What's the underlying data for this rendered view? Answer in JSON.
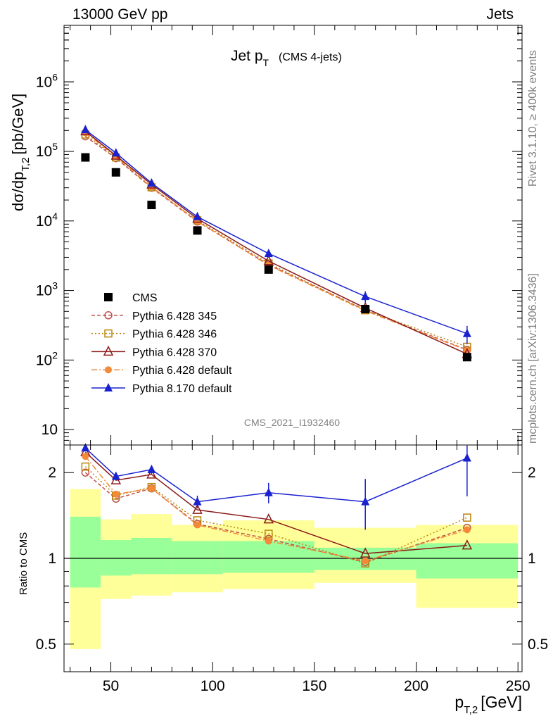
{
  "header": {
    "left": "13000 GeV pp",
    "right": "Jets",
    "plot_title_main": "Jet p",
    "plot_title_sub": "T",
    "plot_title_extra": "(CMS 4-jets)",
    "side_rivet": "Rivet 3.1.10, ≥ 400k events",
    "side_mcplots": "mcplots.cern.ch [arXiv:1306.3436]",
    "analysis_id": "CMS_2021_I1932460"
  },
  "colors": {
    "cms": "#000000",
    "p345": "#c0504d",
    "p346": "#b8860b",
    "p370": "#8b1a1a",
    "p6def": "#f28a3a",
    "p8def": "#1a22d0",
    "band_inner": "#99ff99",
    "band_outer": "#ffff99"
  },
  "chart_data": [
    {
      "type": "line",
      "yscale": "log",
      "ylabel_main": "dσ/dp",
      "ylabel_sub": "T,2",
      "ylabel_unit": "[pb/GeV]",
      "xlim": [
        27,
        252
      ],
      "ylim": [
        6,
        6500000
      ],
      "ytick_major": [
        10,
        100,
        1000,
        10000,
        100000,
        1000000
      ],
      "ytick_labels": [
        "10",
        "10^2",
        "10^3",
        "10^4",
        "10^5",
        "10^6"
      ],
      "x": [
        37.5,
        52.5,
        70,
        92.5,
        127.5,
        175,
        225
      ],
      "series": [
        {
          "name": "CMS",
          "marker": "square",
          "color": "#000000",
          "values": [
            82000,
            50000,
            17000,
            7300,
            2000,
            540,
            110
          ]
        },
        {
          "name": "Pythia 6.428 345",
          "marker": "circle-open",
          "dash": "5,3",
          "color": "#c0504d",
          "values": [
            165000,
            80000,
            30000,
            9800,
            2350,
            525,
            140
          ]
        },
        {
          "name": "Pythia 6.428 346",
          "marker": "square-open",
          "dash": "2,3",
          "color": "#b8860b",
          "values": [
            175000,
            82000,
            30500,
            10200,
            2450,
            520,
            155
          ]
        },
        {
          "name": "Pythia 6.428 370",
          "marker": "triangle-open",
          "dash": "",
          "color": "#8b1a1a",
          "values": [
            195000,
            87000,
            33500,
            10800,
            2650,
            560,
            122
          ]
        },
        {
          "name": "Pythia 6.428 default",
          "marker": "circle-filled",
          "dash": "8,3,2,3",
          "color": "#f28a3a",
          "values": [
            185000,
            85000,
            31000,
            9900,
            2300,
            510,
            138
          ]
        },
        {
          "name": "Pythia 8.170 default",
          "marker": "triangle-filled",
          "dash": "",
          "color": "#1a22d0",
          "values": [
            205000,
            95000,
            35000,
            11500,
            3400,
            820,
            240
          ],
          "err": [
            0,
            0,
            0,
            0,
            0,
            150,
            70
          ]
        }
      ],
      "legend": "bottom-left"
    },
    {
      "type": "line",
      "yscale": "log",
      "ylabel": "Ratio to CMS",
      "xlabel_main": "p",
      "xlabel_sub": "T,2",
      "xlabel_unit": "[GeV]",
      "xlim": [
        27,
        252
      ],
      "ylim": [
        0.4,
        2.5
      ],
      "ytick_labels": [
        {
          "v": 0.5,
          "t": "0.5"
        },
        {
          "v": 1,
          "t": "1"
        },
        {
          "v": 2,
          "t": "2"
        }
      ],
      "xtick_labels": [
        {
          "v": 50,
          "t": "50"
        },
        {
          "v": 100,
          "t": "100"
        },
        {
          "v": 150,
          "t": "150"
        },
        {
          "v": 200,
          "t": "200"
        },
        {
          "v": 250,
          "t": "250"
        }
      ],
      "bins": [
        [
          30,
          45
        ],
        [
          45,
          60
        ],
        [
          60,
          80
        ],
        [
          80,
          105
        ],
        [
          105,
          150
        ],
        [
          150,
          200
        ],
        [
          200,
          250
        ]
      ],
      "band_inner": [
        [
          0.79,
          1.4
        ],
        [
          0.87,
          1.16
        ],
        [
          0.88,
          1.18
        ],
        [
          0.88,
          1.15
        ],
        [
          0.89,
          1.15
        ],
        [
          0.91,
          1.09
        ],
        [
          0.85,
          1.13
        ]
      ],
      "band_outer": [
        [
          0.48,
          1.75
        ],
        [
          0.72,
          1.37
        ],
        [
          0.74,
          1.43
        ],
        [
          0.76,
          1.31
        ],
        [
          0.78,
          1.36
        ],
        [
          0.82,
          1.28
        ],
        [
          0.67,
          1.31
        ]
      ],
      "x": [
        37.5,
        52.5,
        70,
        92.5,
        127.5,
        175,
        225
      ],
      "series": [
        {
          "name": "Pythia 6.428 345",
          "values": [
            2.0,
            1.62,
            1.76,
            1.32,
            1.17,
            0.97,
            1.28
          ]
        },
        {
          "name": "Pythia 6.428 346",
          "values": [
            2.1,
            1.66,
            1.78,
            1.36,
            1.22,
            0.96,
            1.39
          ]
        },
        {
          "name": "Pythia 6.428 370",
          "values": [
            2.36,
            1.88,
            1.97,
            1.48,
            1.37,
            1.04,
            1.11
          ]
        },
        {
          "name": "Pythia 6.428 default",
          "values": [
            2.28,
            1.68,
            1.76,
            1.31,
            1.15,
            0.98,
            1.26
          ]
        },
        {
          "name": "Pythia 8.170 default",
          "values": [
            2.44,
            1.94,
            2.05,
            1.58,
            1.7,
            1.58,
            2.25
          ],
          "err": [
            0,
            0.05,
            0.07,
            0.08,
            0.14,
            0.32,
            0.6
          ]
        }
      ]
    }
  ]
}
